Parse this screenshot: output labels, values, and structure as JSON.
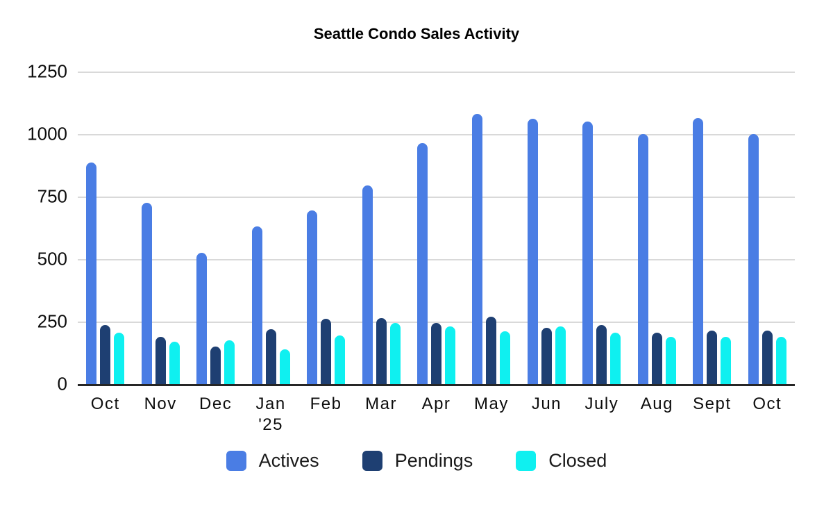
{
  "chart_data": {
    "type": "bar",
    "title": "Seattle Condo Sales Activity",
    "categories": [
      "Oct",
      "Nov",
      "Dec",
      "Jan\n'25",
      "Feb",
      "Mar",
      "Apr",
      "May",
      "Jun",
      "July",
      "Aug",
      "Sept",
      "Oct"
    ],
    "series": [
      {
        "name": "Actives",
        "color": "#4a7de4",
        "values": [
          885,
          725,
          525,
          630,
          695,
          795,
          965,
          1080,
          1060,
          1050,
          1000,
          1065,
          1000
        ]
      },
      {
        "name": "Pendings",
        "color": "#1e3f72",
        "values": [
          235,
          190,
          150,
          220,
          260,
          265,
          245,
          270,
          225,
          235,
          205,
          215,
          215
        ]
      },
      {
        "name": "Closed",
        "color": "#0ff0f0",
        "values": [
          205,
          170,
          175,
          140,
          195,
          245,
          230,
          210,
          230,
          205,
          190,
          190,
          190
        ]
      }
    ],
    "ylim": [
      0,
      1250
    ],
    "yticks": [
      0,
      250,
      500,
      750,
      1000,
      1250
    ],
    "grid": true,
    "legend_position": "bottom",
    "colors": {
      "gridline": "#d9d9d9",
      "axis": "#262626",
      "text": "#0d0d0d"
    }
  }
}
